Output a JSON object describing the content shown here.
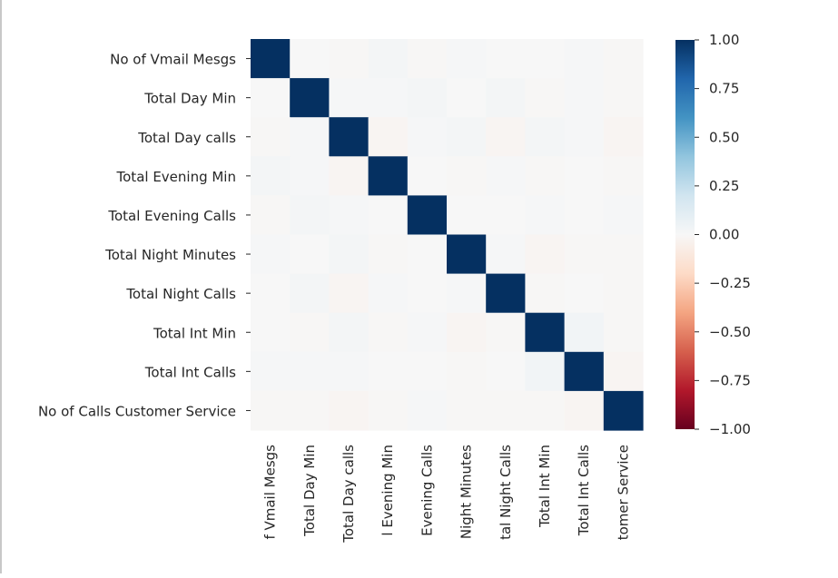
{
  "chart_data": {
    "type": "heatmap",
    "title": "",
    "row_labels": [
      "No of Vmail Mesgs",
      "Total Day Min",
      "Total Day calls",
      "Total Evening Min",
      "Total Evening Calls",
      "Total Night Minutes",
      "Total Night Calls",
      "Total Int Min",
      "Total Int Calls",
      "No of Calls Customer Service"
    ],
    "col_labels": [
      "No of Vmail Mesgs",
      "Total Day Min",
      "Total Day calls",
      "Total Evening Min",
      "Total Evening Calls",
      "Total Night Minutes",
      "Total Night Calls",
      "Total Int Min",
      "Total Int Calls",
      "No of Calls Customer Service"
    ],
    "values": [
      [
        1.0,
        0.0,
        -0.01,
        0.02,
        -0.01,
        0.01,
        0.0,
        0.0,
        0.01,
        -0.01
      ],
      [
        0.0,
        1.0,
        0.01,
        0.01,
        0.02,
        0.0,
        0.02,
        -0.01,
        0.01,
        -0.01
      ],
      [
        -0.01,
        0.01,
        1.0,
        -0.02,
        0.01,
        0.02,
        -0.02,
        0.02,
        0.01,
        -0.02
      ],
      [
        0.02,
        0.01,
        -0.02,
        1.0,
        0.0,
        -0.01,
        0.01,
        -0.01,
        0.0,
        -0.01
      ],
      [
        -0.01,
        0.02,
        0.01,
        0.0,
        1.0,
        0.0,
        0.0,
        0.01,
        0.0,
        0.01
      ],
      [
        0.01,
        0.0,
        0.02,
        -0.01,
        0.0,
        1.0,
        0.01,
        -0.02,
        -0.01,
        -0.01
      ],
      [
        0.0,
        0.02,
        -0.02,
        0.01,
        0.0,
        0.01,
        1.0,
        -0.01,
        0.0,
        -0.01
      ],
      [
        0.0,
        -0.01,
        0.02,
        -0.01,
        0.01,
        -0.02,
        -0.01,
        1.0,
        0.03,
        -0.01
      ],
      [
        0.01,
        0.01,
        0.01,
        0.0,
        0.0,
        -0.01,
        0.0,
        0.03,
        1.0,
        -0.02
      ],
      [
        -0.01,
        -0.01,
        -0.02,
        -0.01,
        0.01,
        -0.01,
        -0.01,
        -0.01,
        -0.02,
        1.0
      ]
    ],
    "col_label_display": [
      "f Vmail Mesgs",
      "Total Day Min",
      "Total Day calls",
      "l Evening Min",
      "Evening Calls",
      "Night Minutes",
      "tal Night Calls",
      "Total Int Min",
      "Total Int Calls",
      "tomer Service"
    ],
    "colorbar": {
      "range": [
        -1.0,
        1.0
      ],
      "ticks": [
        1.0,
        0.75,
        0.5,
        0.25,
        0.0,
        -0.25,
        -0.5,
        -0.75,
        -1.0
      ],
      "tick_labels": [
        "1.00",
        "0.75",
        "0.50",
        "0.25",
        "0.00",
        "−0.25",
        "−0.50",
        "−0.75",
        "−1.00"
      ],
      "colormap": "RdBu",
      "colors": [
        "#67001f",
        "#b2182b",
        "#d6604d",
        "#f4a582",
        "#fddbc7",
        "#f7f7f7",
        "#d1e5f0",
        "#92c5de",
        "#4393c3",
        "#2166ac",
        "#053061"
      ]
    },
    "grid": false,
    "legend": "colorbar-right"
  }
}
